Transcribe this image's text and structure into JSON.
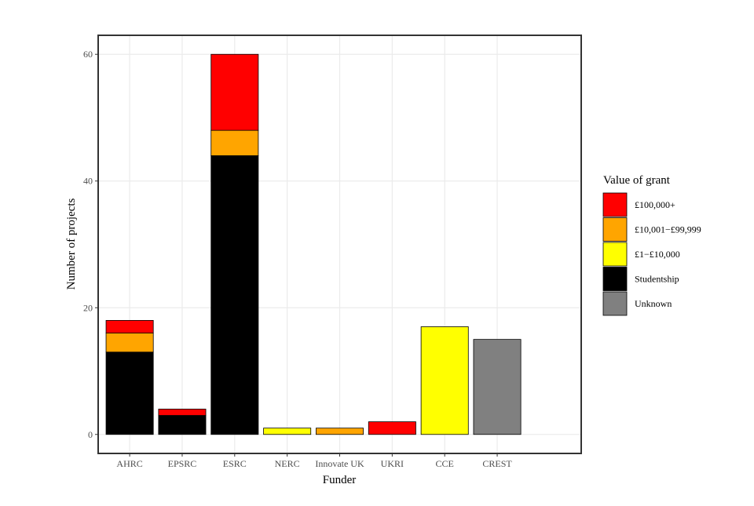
{
  "chart_data": {
    "type": "stacked-bar",
    "x_label": "Funder",
    "y_label": "Number of projects",
    "categories": [
      "AHRC",
      "EPSRC",
      "ESRC",
      "NERC",
      "Innovate UK",
      "UKRI",
      "CCE",
      "CREST"
    ],
    "legend_title": "Value of grant",
    "series": [
      {
        "name": "£100,000+",
        "color": "#ff0000",
        "values": [
          2,
          1,
          12,
          0,
          0,
          2,
          0,
          0
        ]
      },
      {
        "name": "£10,001−£99,999",
        "color": "#ffa500",
        "values": [
          3,
          0,
          4,
          0,
          1,
          0,
          0,
          0
        ]
      },
      {
        "name": "£1−£10,000",
        "color": "#ffff00",
        "values": [
          0,
          0,
          0,
          1,
          0,
          0,
          17,
          0
        ]
      },
      {
        "name": "Studentship",
        "color": "#000000",
        "values": [
          13,
          3,
          44,
          0,
          0,
          0,
          0,
          0
        ]
      },
      {
        "name": "Unknown",
        "color": "#808080",
        "values": [
          0,
          0,
          0,
          0,
          0,
          0,
          0,
          15
        ]
      }
    ],
    "ylim": [
      -3,
      63
    ],
    "yticks": [
      0,
      20,
      40,
      60
    ],
    "grid": true,
    "legend": "right"
  }
}
